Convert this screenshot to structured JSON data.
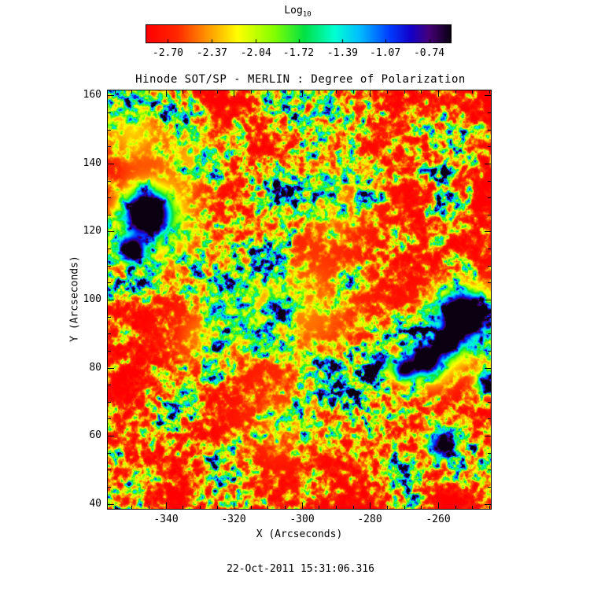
{
  "colorbar": {
    "title": "Log",
    "title_sub": "10"
  },
  "header": {
    "title": "Hinode SOT/SP - MERLIN : Degree of Polarization"
  },
  "axes": {
    "xlabel": "X (Arcseconds)",
    "ylabel": "Y (Arcseconds)"
  },
  "footer": {
    "timestamp": "22-Oct-2011 15:31:06.316"
  },
  "chart_data": {
    "type": "heatmap",
    "title": "Hinode SOT/SP - MERLIN : Degree of Polarization",
    "xlabel": "X (Arcseconds)",
    "ylabel": "Y (Arcseconds)",
    "timestamp": "22-Oct-2011 15:31:06.316",
    "xlim": [
      -357,
      -244.5
    ],
    "ylim": [
      38.5,
      161.5
    ],
    "x_ticks": [
      -340,
      -320,
      -300,
      -280,
      -260
    ],
    "y_ticks": [
      40,
      60,
      80,
      100,
      120,
      140,
      160
    ],
    "minor_tick_step": 5,
    "colorbar": {
      "label": "Log10",
      "tick_values": [
        -2.7,
        -2.37,
        -2.04,
        -1.72,
        -1.39,
        -1.07,
        -0.74
      ],
      "tick_labels": [
        "-2.70",
        "-2.37",
        "-2.04",
        "-1.72",
        "-1.39",
        "-1.07",
        "-0.74"
      ],
      "range": [
        -2.862,
        -0.578
      ]
    },
    "colormap": [
      [
        0.0,
        [
          255,
          0,
          0
        ]
      ],
      [
        0.1,
        [
          255,
          40,
          0
        ]
      ],
      [
        0.2,
        [
          255,
          150,
          0
        ]
      ],
      [
        0.3,
        [
          255,
          255,
          0
        ]
      ],
      [
        0.42,
        [
          130,
          255,
          0
        ]
      ],
      [
        0.52,
        [
          0,
          225,
          70
        ]
      ],
      [
        0.62,
        [
          0,
          255,
          210
        ]
      ],
      [
        0.7,
        [
          0,
          190,
          255
        ]
      ],
      [
        0.8,
        [
          0,
          60,
          255
        ]
      ],
      [
        0.87,
        [
          20,
          0,
          200
        ]
      ],
      [
        0.93,
        [
          70,
          0,
          120
        ]
      ],
      [
        1.0,
        [
          10,
          0,
          18
        ]
      ]
    ],
    "features": [
      {
        "x": -345.5,
        "y": 125.5,
        "r": 4.0,
        "s": 1.3
      },
      {
        "x": -350.0,
        "y": 114.5,
        "r": 2.6,
        "s": 1.05
      },
      {
        "x": -252.5,
        "y": 95.5,
        "r": 4.4,
        "s": 1.3
      },
      {
        "x": -257.5,
        "y": 87.5,
        "r": 2.4,
        "s": 0.9
      },
      {
        "x": -263.5,
        "y": 82.5,
        "r": 2.8,
        "s": 1.05
      },
      {
        "x": -270.0,
        "y": 79.5,
        "r": 2.4,
        "s": 0.9
      },
      {
        "x": -277.0,
        "y": 81.0,
        "r": 1.8,
        "s": 0.65
      },
      {
        "x": -258.5,
        "y": 57.5,
        "r": 2.8,
        "s": 1.1
      },
      {
        "x": -245.5,
        "y": 75.5,
        "r": 2.2,
        "s": 0.85
      },
      {
        "x": -344.0,
        "y": 122.0,
        "r": 9.0,
        "s": 0.4
      },
      {
        "x": -350.0,
        "y": 150.0,
        "r": 7.0,
        "s": 0.25
      },
      {
        "x": -332.0,
        "y": 142.0,
        "r": 6.0,
        "s": 0.2
      },
      {
        "x": -253.0,
        "y": 92.0,
        "r": 8.0,
        "s": 0.38
      },
      {
        "x": -263.0,
        "y": 81.0,
        "r": 6.0,
        "s": 0.3
      },
      {
        "x": -299.0,
        "y": 97.0,
        "r": 14.0,
        "s": 0.17
      },
      {
        "x": -317.0,
        "y": 99.0,
        "r": 8.0,
        "s": 0.15
      },
      {
        "x": -290.0,
        "y": 129.0,
        "r": 9.0,
        "s": 0.15
      },
      {
        "x": -307.0,
        "y": 63.0,
        "r": 9.0,
        "s": 0.13
      },
      {
        "x": -330.0,
        "y": 88.0,
        "r": 7.0,
        "s": 0.15
      }
    ],
    "noise": {
      "seed": 20111022
    }
  }
}
